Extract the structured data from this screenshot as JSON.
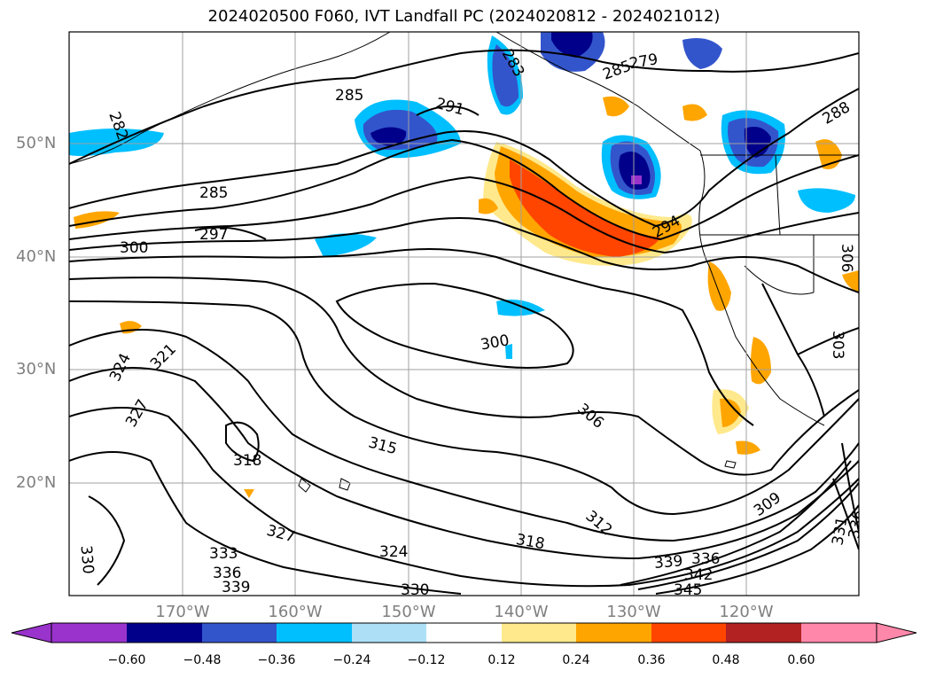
{
  "title": "2024020500 F060, IVT Landfall PC (2024020812 - 2024021012)",
  "lat_labels": [
    "50°N",
    "40°N",
    "30°N",
    "20°N"
  ],
  "lon_labels": [
    "170°W",
    "160°W",
    "150°W",
    "140°W",
    "130°W",
    "120°W"
  ],
  "colorbar": {
    "colors": [
      "#9933cc",
      "#00008b",
      "#3355cc",
      "#00bfff",
      "#ade0f7",
      "#ffffff",
      "#ffe98c",
      "#ffa500",
      "#ff4500",
      "#b22222",
      "#ff88aa"
    ],
    "ticks": [
      "−0.60",
      "−0.48",
      "−0.36",
      "−0.24",
      "−0.12",
      "0.12",
      "0.24",
      "0.36",
      "0.48",
      "0.60"
    ]
  },
  "contour_labels": [
    "285",
    "282",
    "291",
    "283",
    "279",
    "288",
    "285",
    "297",
    "300",
    "294",
    "321",
    "324",
    "327",
    "300",
    "303",
    "306",
    "318",
    "315",
    "312",
    "309",
    "327",
    "324",
    "318",
    "330",
    "333",
    "336",
    "339",
    "330",
    "345",
    "342",
    "336",
    "339",
    "306",
    "331",
    "336"
  ]
}
